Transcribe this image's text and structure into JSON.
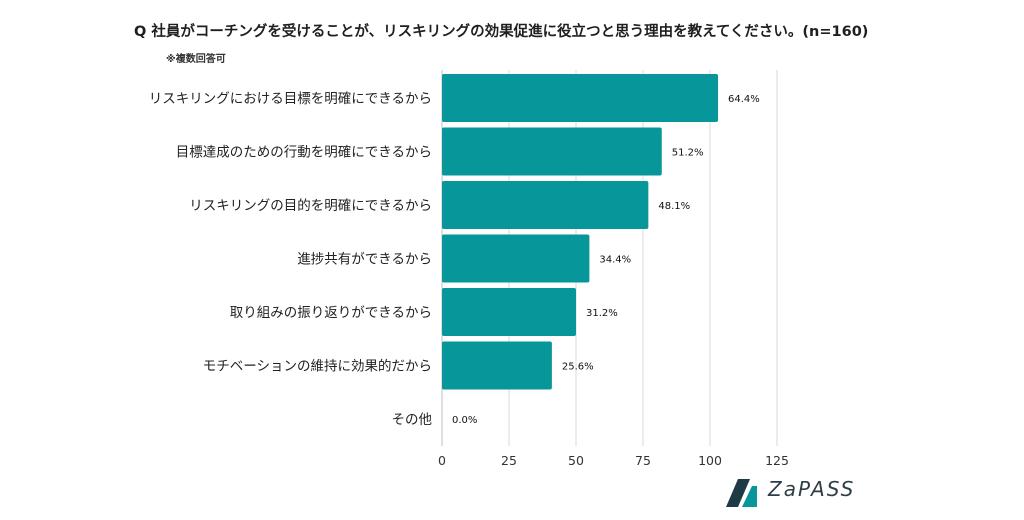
{
  "header": {
    "title": "Q 社員がコーチングを受けることが、リスキリングの効果促進に役立つと思う理由を教えてください。(n=160)",
    "note": "※複数回答可"
  },
  "brand": {
    "name": "ZaPASS",
    "logo_icon": "zapass-logo-icon",
    "color": "#1f3a44"
  },
  "colors": {
    "bar": "#07969a",
    "grid": "#d9d9d9",
    "axis": "#555555"
  },
  "chart_data": {
    "type": "bar",
    "orientation": "horizontal",
    "categories": [
      "リスキリングにおける目標を明確にできるから",
      "目標達成のための行動を明確にできるから",
      "リスキリングの目的を明確にできるから",
      "進捗共有ができるから",
      "取り組みの振り返りができるから",
      "モチベーションの維持に効果的だから",
      "その他"
    ],
    "values": [
      103,
      82,
      77,
      55,
      50,
      41,
      0
    ],
    "data_labels": [
      "64.4%",
      "51.2%",
      "48.1%",
      "34.4%",
      "31.2%",
      "25.6%",
      "0.0%"
    ],
    "xlim": [
      0,
      125
    ],
    "xticks": [
      0,
      25,
      50,
      75,
      100,
      125
    ],
    "xtick_labels": [
      "0",
      "25",
      "50",
      "75",
      "100",
      "125"
    ],
    "grid": true
  }
}
